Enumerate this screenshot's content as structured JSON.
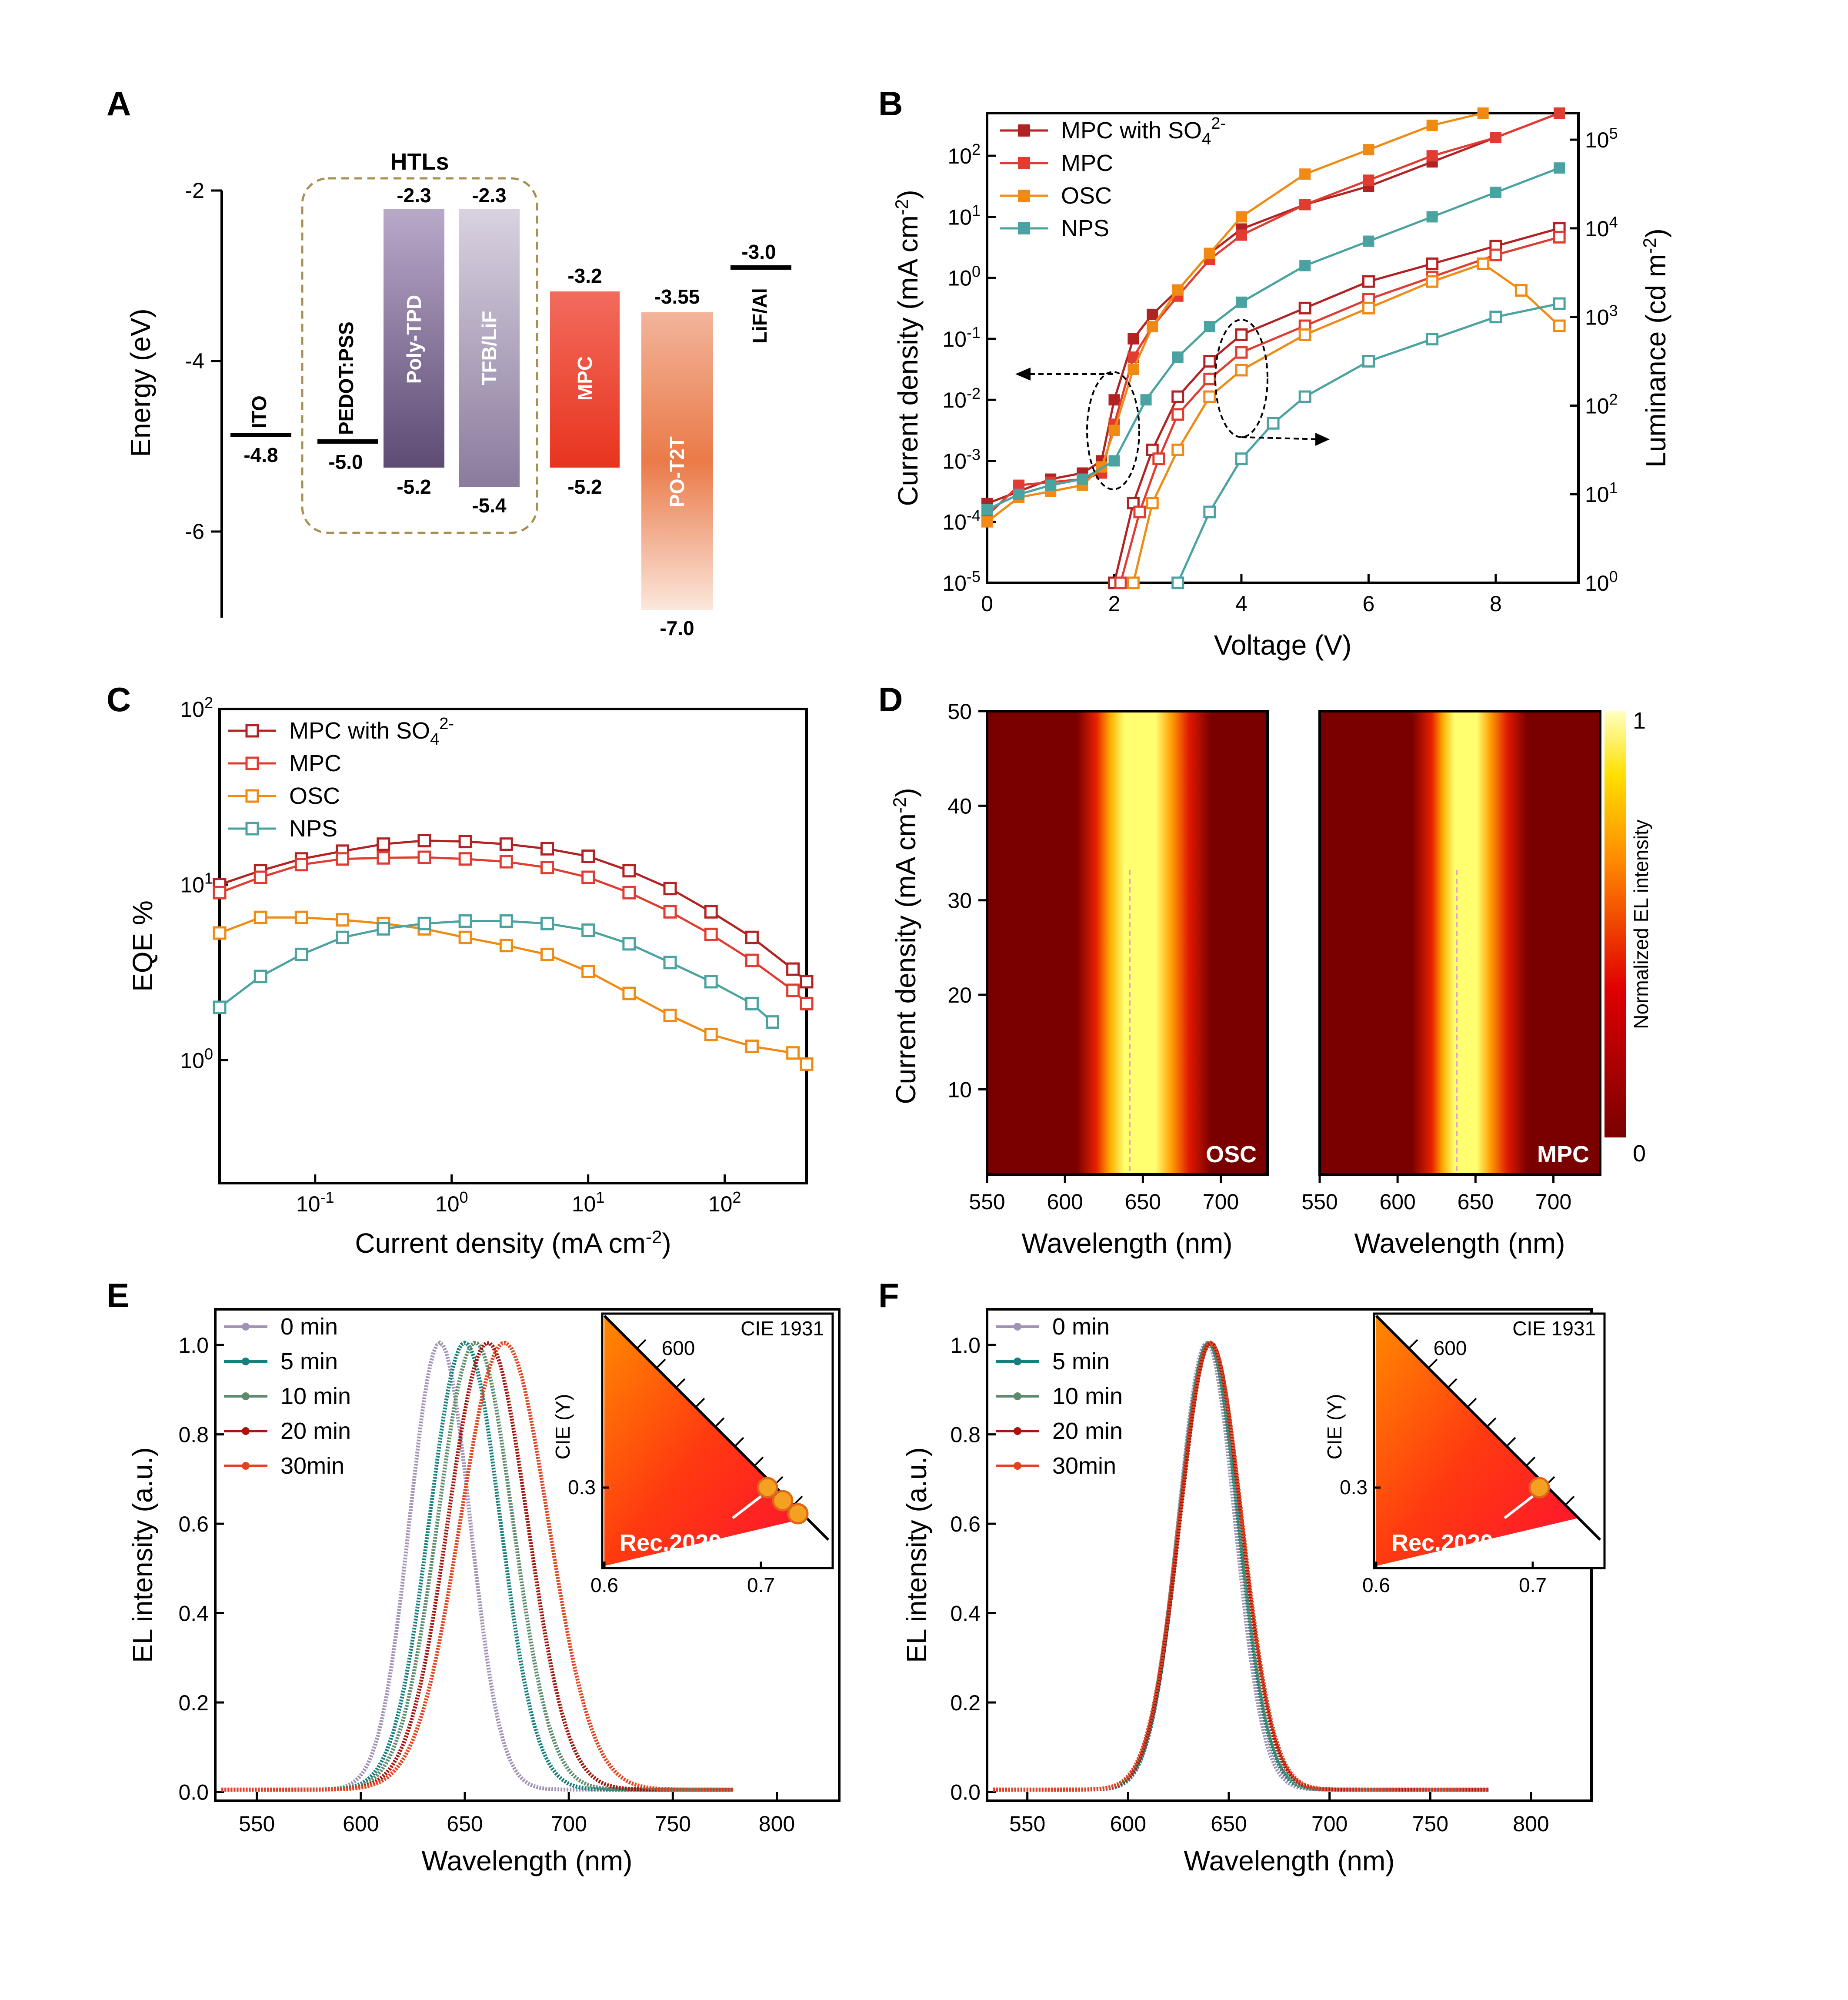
{
  "colors": {
    "mpc_so4": "#b22222",
    "mpc": "#e03c31",
    "osc": "#f08a12",
    "nps": "#4aa3a0",
    "e_0": "#a293b5",
    "e_5": "#17807c",
    "e_10": "#5e8b6e",
    "e_20": "#a5160c",
    "e_30": "#e5431f"
  },
  "panels": {
    "A": "A",
    "B": "B",
    "C": "C",
    "D": "D",
    "E": "E",
    "F": "F"
  },
  "chart_data": [
    {
      "panel": "A",
      "type": "diagram",
      "ylabel": "Energy (eV)",
      "yticks": [
        "-2",
        "-4",
        "-6"
      ],
      "group_label": "HTLs",
      "levels": [
        {
          "name": "ITO",
          "value": "-4.8"
        },
        {
          "name": "PEDOT:PSS",
          "value": "-5.0"
        },
        {
          "name": "Poly-TPD",
          "top": "-2.3",
          "bottom": "-5.2"
        },
        {
          "name": "TFB/LiF",
          "top": "-2.3",
          "bottom": "-5.4"
        },
        {
          "name": "MPC",
          "top": "-3.2",
          "bottom": "-5.2"
        },
        {
          "name": "PO-T2T",
          "top": "-3.55",
          "bottom": "-7.0"
        },
        {
          "name": "LiF/Al",
          "value": "-3.0"
        }
      ]
    },
    {
      "panel": "B",
      "type": "scatter",
      "xlabel": "Voltage (V)",
      "ylabel": "Current density (mA cm",
      "ylabel_sup": "-2",
      "ylabel_end": ")",
      "y2label": "Luminance (cd m",
      "y2label_sup": "-2",
      "y2label_end": ")",
      "xlim": [
        0,
        9.3
      ],
      "ylim_log10": [
        -5,
        2.7
      ],
      "y2lim_log10": [
        0,
        5.3
      ],
      "x_ticks": [
        "0",
        "2",
        "4",
        "6",
        "8"
      ],
      "y_ticks_mantissa": "10",
      "y_ticks_exp": [
        "-5",
        "-4",
        "-3",
        "-2",
        "-1",
        "0",
        "1",
        "2"
      ],
      "y2_ticks_exp": [
        "0",
        "1",
        "2",
        "3",
        "4",
        "5"
      ],
      "legend": [
        {
          "label": "MPC with SO",
          "sub": "4",
          "sup": "2-",
          "color_key": "mpc_so4"
        },
        {
          "label": "MPC",
          "sub": "",
          "sup": "",
          "color_key": "mpc"
        },
        {
          "label": "OSC",
          "sub": "",
          "sup": "",
          "color_key": "osc"
        },
        {
          "label": "NPS",
          "sub": "",
          "sup": "",
          "color_key": "nps"
        }
      ],
      "series": [
        {
          "name": "MPC with SO4 2- (J)",
          "color_key": "mpc_so4",
          "marker": "filled",
          "x": [
            0,
            0.5,
            1,
            1.5,
            1.8,
            2.0,
            2.3,
            2.6,
            3.0,
            3.5,
            4.0,
            5.0,
            6.0,
            7.0,
            8.0,
            9.0
          ],
          "log_y": [
            -3.7,
            -3.5,
            -3.3,
            -3.2,
            -3.0,
            -2.0,
            -1.0,
            -0.6,
            -0.2,
            0.4,
            0.8,
            1.2,
            1.5,
            1.9,
            2.3,
            2.7
          ]
        },
        {
          "name": "MPC (J)",
          "color_key": "mpc",
          "marker": "filled",
          "x": [
            0,
            0.5,
            1,
            1.5,
            1.8,
            2.0,
            2.3,
            2.6,
            3.0,
            3.5,
            4.0,
            5.0,
            6.0,
            7.0,
            8.0,
            9.0
          ],
          "log_y": [
            -3.9,
            -3.4,
            -3.35,
            -3.3,
            -3.2,
            -2.4,
            -1.3,
            -0.8,
            -0.3,
            0.3,
            0.7,
            1.2,
            1.6,
            2.0,
            2.3,
            2.7
          ]
        },
        {
          "name": "OSC (J)",
          "color_key": "osc",
          "marker": "filled",
          "x": [
            0,
            0.5,
            1,
            1.5,
            1.8,
            2.0,
            2.3,
            2.6,
            3.0,
            3.5,
            4.0,
            5.0,
            6.0,
            7.0,
            7.8
          ],
          "log_y": [
            -4.0,
            -3.6,
            -3.5,
            -3.4,
            -3.1,
            -2.5,
            -1.5,
            -0.8,
            -0.2,
            0.4,
            1.0,
            1.7,
            2.1,
            2.5,
            2.7
          ]
        },
        {
          "name": "NPS (J)",
          "color_key": "nps",
          "marker": "filled",
          "x": [
            0,
            0.5,
            1,
            1.5,
            2.0,
            2.5,
            3.0,
            3.5,
            4.0,
            5.0,
            6.0,
            7.0,
            8.0,
            9.0
          ],
          "log_y": [
            -3.8,
            -3.55,
            -3.4,
            -3.3,
            -3.0,
            -2.0,
            -1.3,
            -0.8,
            -0.4,
            0.2,
            0.6,
            1.0,
            1.4,
            1.8
          ]
        },
        {
          "name": "MPC with SO4 2- (L)",
          "color_key": "mpc_so4",
          "marker": "open",
          "x": [
            2.0,
            2.3,
            2.6,
            3.0,
            3.5,
            4.0,
            5.0,
            6.0,
            7.0,
            8.0,
            9.0
          ],
          "log_y2": [
            0.0,
            0.9,
            1.5,
            2.1,
            2.5,
            2.8,
            3.1,
            3.4,
            3.6,
            3.8,
            4.0
          ]
        },
        {
          "name": "MPC (L)",
          "color_key": "mpc",
          "marker": "open",
          "x": [
            2.1,
            2.4,
            2.7,
            3.0,
            3.5,
            4.0,
            5.0,
            6.0,
            7.0,
            8.0,
            9.0
          ],
          "log_y2": [
            0.0,
            0.8,
            1.4,
            1.9,
            2.3,
            2.6,
            2.9,
            3.2,
            3.45,
            3.7,
            3.9
          ]
        },
        {
          "name": "OSC (L)",
          "color_key": "osc",
          "marker": "open",
          "x": [
            2.3,
            2.6,
            3.0,
            3.5,
            4.0,
            5.0,
            6.0,
            7.0,
            7.8,
            8.4,
            9.0
          ],
          "log_y2": [
            0.0,
            0.9,
            1.5,
            2.1,
            2.4,
            2.8,
            3.1,
            3.4,
            3.6,
            3.3,
            2.9
          ]
        },
        {
          "name": "NPS (L)",
          "color_key": "nps",
          "marker": "open",
          "x": [
            3.0,
            3.5,
            4.0,
            4.5,
            5.0,
            6.0,
            7.0,
            8.0,
            9.0
          ],
          "log_y2": [
            0.0,
            0.8,
            1.4,
            1.8,
            2.1,
            2.5,
            2.75,
            3.0,
            3.15
          ]
        }
      ]
    },
    {
      "panel": "C",
      "type": "line",
      "xlabel": "Current density (mA cm",
      "xlabel_sup": "-2",
      "xlabel_end": ")",
      "ylabel": "EQE %",
      "xlim_log10": [
        -1.7,
        2.6
      ],
      "ylim_log10": [
        -0.7,
        2.0
      ],
      "x_ticks_mantissa": "10",
      "x_ticks_exp": [
        "-1",
        "0",
        "1",
        "2"
      ],
      "y_ticks_exp": [
        "0",
        "1",
        "2"
      ],
      "legend": [
        {
          "label": "MPC with SO",
          "sub": "4",
          "sup": "2-",
          "color_key": "mpc_so4"
        },
        {
          "label": "MPC",
          "sub": "",
          "sup": "",
          "color_key": "mpc"
        },
        {
          "label": "OSC",
          "sub": "",
          "sup": "",
          "color_key": "osc"
        },
        {
          "label": "NPS",
          "sub": "",
          "sup": "",
          "color_key": "nps"
        }
      ],
      "series": [
        {
          "name": "MPC with SO4 2-",
          "color_key": "mpc_so4",
          "log_x": [
            -1.7,
            -1.4,
            -1.1,
            -0.8,
            -0.5,
            -0.2,
            0.1,
            0.4,
            0.7,
            1.0,
            1.3,
            1.6,
            1.9,
            2.2,
            2.5,
            2.6
          ],
          "y": [
            10.0,
            12.0,
            14.0,
            15.5,
            17.0,
            17.8,
            17.6,
            17.0,
            16.0,
            14.5,
            12.0,
            9.5,
            7.0,
            5.0,
            3.3,
            2.8
          ]
        },
        {
          "name": "MPC",
          "color_key": "mpc",
          "log_x": [
            -1.7,
            -1.4,
            -1.1,
            -0.8,
            -0.5,
            -0.2,
            0.1,
            0.4,
            0.7,
            1.0,
            1.3,
            1.6,
            1.9,
            2.2,
            2.5,
            2.6
          ],
          "y": [
            9.0,
            11.0,
            13.0,
            14.0,
            14.2,
            14.3,
            14.0,
            13.5,
            12.5,
            11.0,
            9.0,
            7.0,
            5.2,
            3.7,
            2.5,
            2.1
          ]
        },
        {
          "name": "OSC",
          "color_key": "osc",
          "log_x": [
            -1.7,
            -1.4,
            -1.1,
            -0.8,
            -0.5,
            -0.2,
            0.1,
            0.4,
            0.7,
            1.0,
            1.3,
            1.6,
            1.9,
            2.2,
            2.5,
            2.6
          ],
          "y": [
            5.3,
            6.5,
            6.5,
            6.3,
            6.0,
            5.6,
            5.0,
            4.5,
            4.0,
            3.2,
            2.4,
            1.8,
            1.4,
            1.2,
            1.1,
            0.95
          ]
        },
        {
          "name": "NPS",
          "color_key": "nps",
          "log_x": [
            -1.7,
            -1.4,
            -1.1,
            -0.8,
            -0.5,
            -0.2,
            0.1,
            0.4,
            0.7,
            1.0,
            1.3,
            1.6,
            1.9,
            2.2,
            2.35
          ],
          "y": [
            2.0,
            3.0,
            4.0,
            5.0,
            5.6,
            6.0,
            6.2,
            6.2,
            6.0,
            5.5,
            4.6,
            3.6,
            2.8,
            2.1,
            1.65
          ]
        }
      ]
    },
    {
      "panel": "D",
      "type": "heatmap",
      "xlabel": "Wavelength (nm)",
      "ylabel": "Current density (mA cm",
      "ylabel_sup": "-2",
      "ylabel_end": ")",
      "xlim": [
        550,
        730
      ],
      "ylim": [
        1,
        50
      ],
      "x_ticks": [
        "550",
        "600",
        "650",
        "700"
      ],
      "y_ticks": [
        "10",
        "20",
        "30",
        "40",
        "50"
      ],
      "colorbar_label": "Normalized EL intensity",
      "colorbar_max": "1",
      "colorbar_min": "0",
      "maps": [
        {
          "label": "OSC",
          "peak_nm_low": 640,
          "peak_nm_high": 650,
          "fwhm_nm": 55,
          "marker_nm": 640
        },
        {
          "label": "MPC",
          "peak_nm_low": 638,
          "peak_nm_high": 638,
          "fwhm_nm": 40,
          "marker_nm": 638
        }
      ]
    },
    {
      "panel": "E",
      "type": "line",
      "xlabel": "Wavelength (nm)",
      "ylabel": "EL intensity (a.u.)",
      "xlim": [
        530,
        830
      ],
      "ylim": [
        -0.02,
        1.08
      ],
      "x_ticks": [
        "550",
        "600",
        "650",
        "700",
        "750",
        "800"
      ],
      "y_ticks": [
        "0.0",
        "0.2",
        "0.4",
        "0.6",
        "0.8",
        "1.0"
      ],
      "series": [
        {
          "name": "0 min",
          "color_key": "e_0",
          "peak": 638,
          "sigma": 14.5
        },
        {
          "name": "5 min",
          "color_key": "e_5",
          "peak": 650,
          "sigma": 17.0
        },
        {
          "name": "10 min",
          "color_key": "e_10",
          "peak": 655,
          "sigma": 18.0
        },
        {
          "name": "20 min",
          "color_key": "e_20",
          "peak": 661,
          "sigma": 19.0
        },
        {
          "name": "30min",
          "color_key": "e_30",
          "peak": 669,
          "sigma": 21.0
        }
      ],
      "inset": {
        "title": "CIE 1931",
        "ylabel": "CIE (Y)",
        "x_ticks": [
          "0.6",
          "0.7"
        ],
        "y_ticks": [
          "0.3"
        ],
        "wavelength_label": "600",
        "standard": "Rec.2020"
      }
    },
    {
      "panel": "F",
      "type": "line",
      "xlabel": "Wavelength (nm)",
      "ylabel": "EL intensity (a.u.)",
      "xlim": [
        530,
        830
      ],
      "ylim": [
        -0.02,
        1.08
      ],
      "x_ticks": [
        "550",
        "600",
        "650",
        "700",
        "750",
        "800"
      ],
      "y_ticks": [
        "0.0",
        "0.2",
        "0.4",
        "0.6",
        "0.8",
        "1.0"
      ],
      "series": [
        {
          "name": "0 min",
          "color_key": "e_0",
          "peak": 639,
          "sigma": 14.0
        },
        {
          "name": "5 min",
          "color_key": "e_5",
          "peak": 640,
          "sigma": 14.5
        },
        {
          "name": "10 min",
          "color_key": "e_10",
          "peak": 640,
          "sigma": 14.8
        },
        {
          "name": "20 min",
          "color_key": "e_20",
          "peak": 641,
          "sigma": 15.2
        },
        {
          "name": "30min",
          "color_key": "e_30",
          "peak": 641,
          "sigma": 15.5
        }
      ],
      "inset": {
        "title": "CIE 1931",
        "ylabel": "CIE (Y)",
        "x_ticks": [
          "0.6",
          "0.7"
        ],
        "y_ticks": [
          "0.3"
        ],
        "wavelength_label": "600",
        "standard": "Rec.2020"
      }
    }
  ]
}
